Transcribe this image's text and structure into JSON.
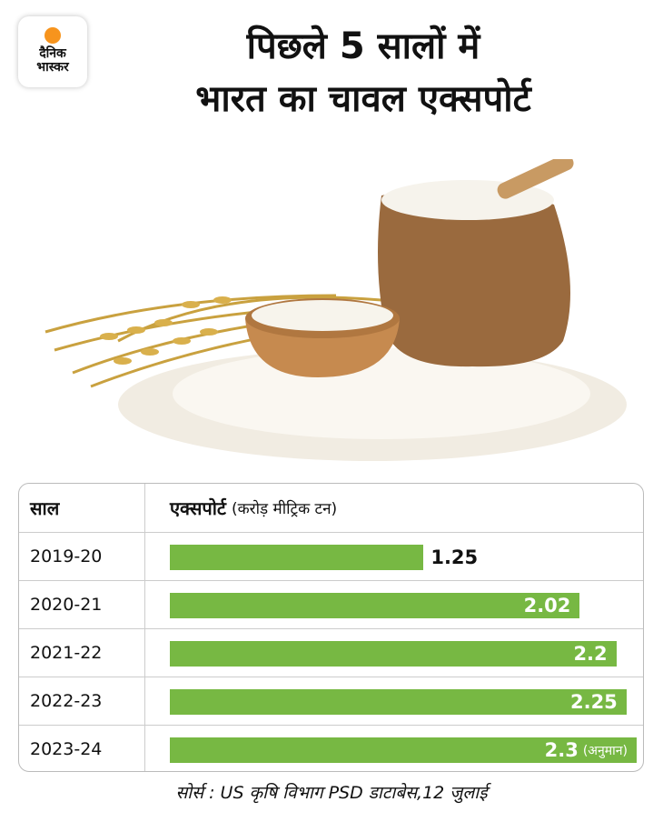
{
  "logo": {
    "line1": "दैनिक",
    "line2": "भास्कर"
  },
  "title": {
    "line1": "पिछले 5 सालों में",
    "line2": "भारत का चावल एक्सपोर्ट"
  },
  "table": {
    "col_year": "साल",
    "col_export": "एक्सपोर्ट",
    "col_unit": "(करोड़ मीट्रिक टन)"
  },
  "chart_data": {
    "type": "bar",
    "orientation": "horizontal",
    "categories": [
      "2019-20",
      "2020-21",
      "2021-22",
      "2022-23",
      "2023-24"
    ],
    "values": [
      1.25,
      2.02,
      2.2,
      2.25,
      2.3
    ],
    "value_labels": [
      "1.25",
      "2.02",
      "2.2",
      "2.25",
      "2.3"
    ],
    "notes": [
      "",
      "",
      "",
      "",
      "(अनुमान)"
    ],
    "ylabel": "एक्सपोर्ट (करोड़ मीट्रिक टन)",
    "bar_color": "#77b843"
  },
  "source": "सोर्स : US कृषि विभाग PSD डाटाबेस,12 जुलाई",
  "colors": {
    "bar": "#77b843",
    "logo_sun": "#f7941d"
  }
}
